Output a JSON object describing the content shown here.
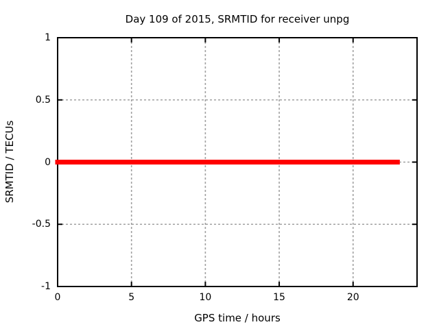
{
  "chart_data": {
    "type": "line",
    "title": "Day 109 of 2015, SRMTID for receiver unpg",
    "xlabel": "GPS time / hours",
    "ylabel": "SRMTID / TECUs",
    "xlim": [
      0,
      24.33
    ],
    "ylim": [
      -1,
      1
    ],
    "xticks": [
      0,
      5,
      10,
      15,
      20
    ],
    "yticks": [
      1,
      0.5,
      0,
      -0.5,
      -1
    ],
    "grid": "dashed",
    "grid_color": "#a0a0a0",
    "border_color": "#000000",
    "background": "#ffffff",
    "legend": "none",
    "series": [
      {
        "name": "SRMTID",
        "color": "#ff0000",
        "line_width": 7,
        "x_start": 0,
        "x_end": 23,
        "constant_y": 0,
        "description": "constant zero SRMTID value from hour 0 to ~23"
      }
    ]
  }
}
